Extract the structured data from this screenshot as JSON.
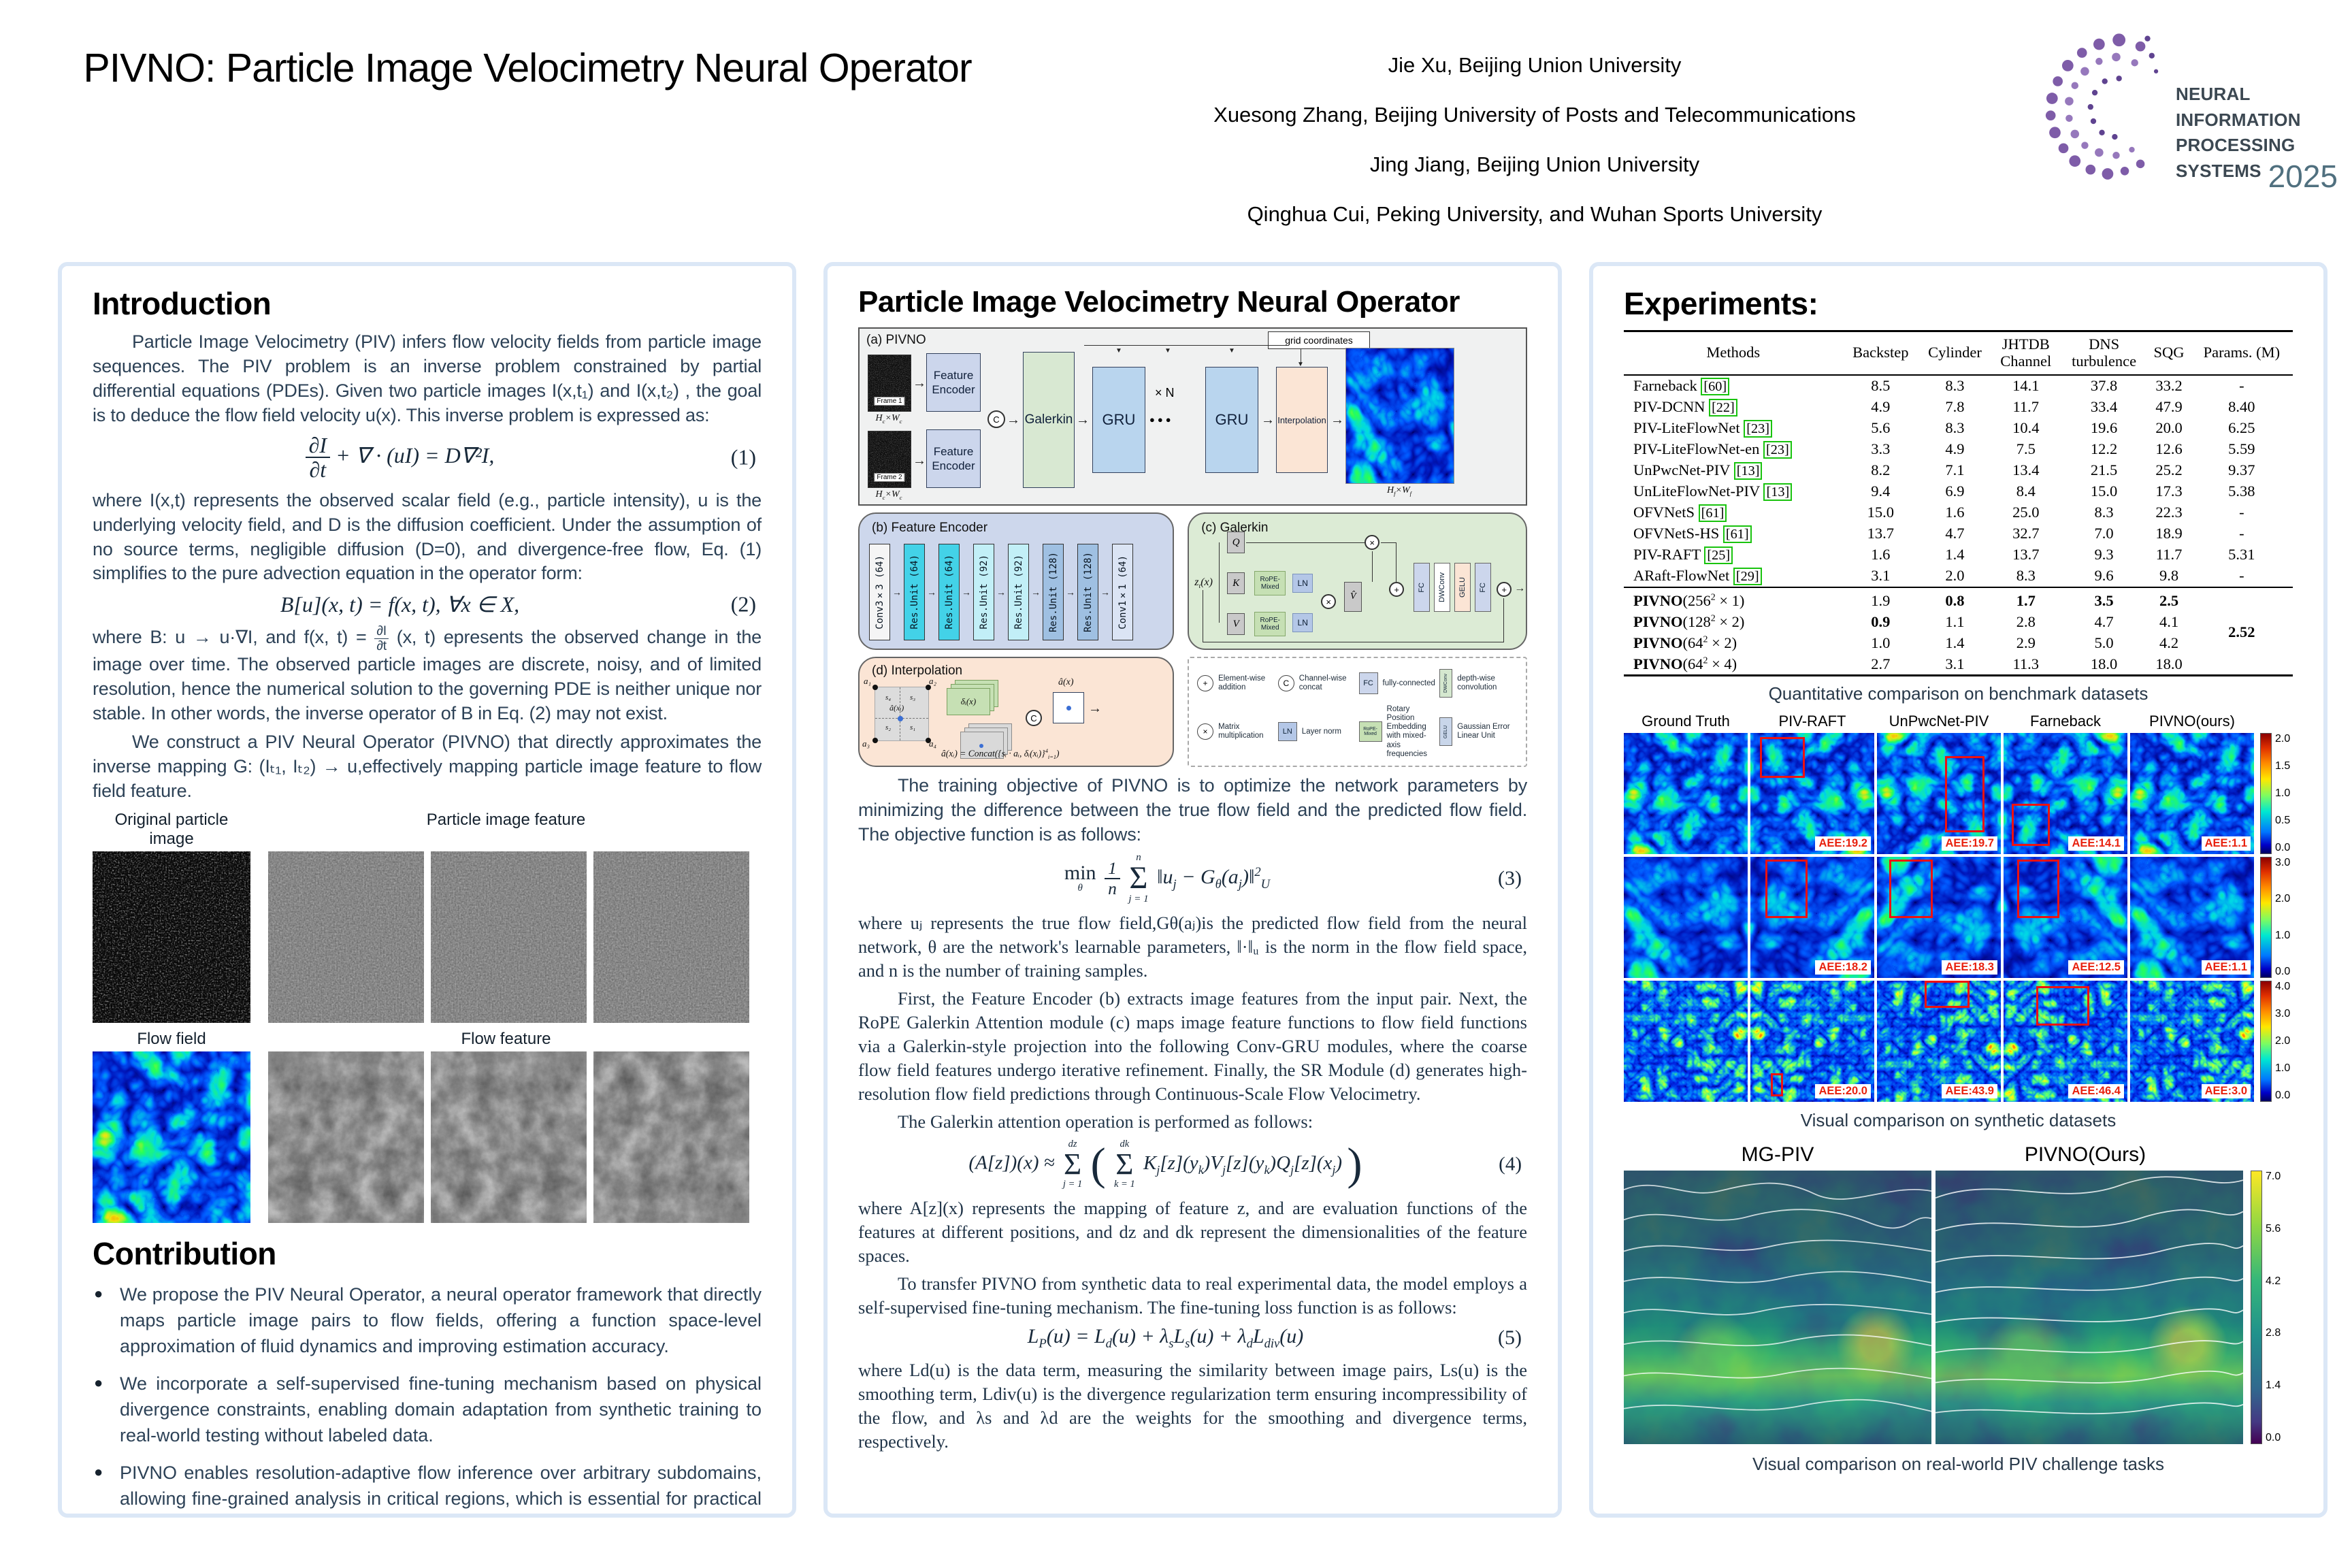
{
  "header": {
    "title": "PIVNO: Particle Image Velocimetry Neural Operator",
    "authors": [
      "Jie Xu, Beijing Union University",
      "Xuesong Zhang, Beijing University of Posts and Telecommunications",
      "Jing Jiang, Beijing Union University",
      "Qinghua Cui, Peking University, and Wuhan Sports University"
    ],
    "logo": {
      "line1": "NEURAL INFORMATION",
      "line2": "PROCESSING SYSTEMS",
      "year": "2025"
    }
  },
  "intro": {
    "heading": "Introduction",
    "p1": "Particle Image Velocimetry (PIV) infers flow velocity fields from particle image sequences. The PIV problem is an inverse problem constrained by partial differential equations (PDEs). Given two particle images I(x,t₁) and I(x,t₂) , the goal is to deduce the flow field velocity u(x). This inverse problem is expressed as:",
    "eq1": {
      "top": "∂I",
      "bot": "∂t",
      "rest": "+ ∇ · (uI) = D∇²I,",
      "num": "(1)"
    },
    "p2": "where I(x,t) represents the observed scalar field (e.g., particle intensity), u is the underlying velocity field, and D is the diffusion coefficient. Under the assumption of no source terms, negligible diffusion (D=0), and divergence-free flow, Eq. (1) simplifies to the pure advection equation in the operator form:",
    "eq2": {
      "body": "B[u](x, t) = f(x, t),    ∀x ∈ X,",
      "num": "(2)"
    },
    "p3a": "where B: u → u·∇I,  and f(x, t) =",
    "p3frac": {
      "top": "∂I",
      "bot": "∂t"
    },
    "p3b": "(x, t) epresents the observed change in the image over time. The observed particle images are discrete, noisy, and of limited resolution, hence the numerical solution to the governing PDE is neither unique nor stable. In other words, the inverse operator of B in Eq. (2) may not exist.",
    "p4": "We construct a PIV Neural Operator (PIVNO) that directly approximates the inverse mapping G: (Iₜ₁, Iₜ₂) → u,effectively mapping particle image feature to flow field feature.",
    "img_labels": {
      "orig": "Original particle image",
      "pif": "Particle image feature",
      "ff": "Flow field",
      "fft": "Flow feature"
    }
  },
  "contribution": {
    "heading": "Contribution",
    "bullets": [
      "We propose the PIV Neural Operator, a neural operator framework that directly maps particle image pairs to flow fields, offering a function space-level approximation of fluid dynamics and improving estimation accuracy.",
      "We incorporate a self-supervised fine-tuning mechanism based on physical divergence constraints, enabling domain adaptation from synthetic training to real-world testing without labeled data.",
      "PIVNO enables resolution-adaptive flow inference over arbitrary subdomains, allowing fine-grained analysis in critical regions, which is essential for practical experimental fluid mechanics."
    ]
  },
  "middle": {
    "heading": "Particle Image Velocimetry Neural Operator",
    "diagram_a": {
      "label": "(a) PIVNO",
      "frame1": "Frame 1",
      "frame2": "Frame 2",
      "dim_c": [
        {
          "t": "H"
        },
        {
          "sub": "c"
        },
        {
          "t": "×W"
        },
        {
          "sub": "c"
        }
      ],
      "dim_f": [
        {
          "t": "H"
        },
        {
          "sub": "f"
        },
        {
          "t": "×W"
        },
        {
          "sub": "f"
        }
      ],
      "fe": "Feature Encoder",
      "concat": "C",
      "galerkin": "Galerkin",
      "gru1": "GRU",
      "gru2": "GRU",
      "xn": "× N",
      "dots": "●●●",
      "interp": "Interpolation",
      "grid": "grid coordinates"
    },
    "encoder": {
      "label": "(b) Feature Encoder",
      "blocks": [
        "Conv3×3 (64)",
        "Res.Unit (64)",
        "Res.Unit (64)",
        "Res.Unit (92)",
        "Res.Unit (92)",
        "Res.Unit (128)",
        "Res.Unit (128)",
        "Conv1×1 (64)"
      ]
    },
    "galerkin": {
      "label": "(c) Galerkin",
      "input": [
        {
          "t": "z"
        },
        {
          "sub": "t"
        },
        {
          "t": "(x)"
        }
      ],
      "q": "Q",
      "k": "K",
      "v": "V",
      "rope1": "RoPE-Mixed",
      "rope2": "RoPE-Mixed",
      "ln1": "LN",
      "ln2": "LN",
      "vhat": "V̂",
      "fc1": "FC",
      "dwconv": "DWConv",
      "gelu": "GELU",
      "fc2": "FC"
    },
    "interp": {
      "label": "(d) Interpolation",
      "a1": "a₁",
      "a2": "a₂",
      "a3": "a₃",
      "a4": "a₄",
      "s1": "s₁",
      "s2": "s₂",
      "s3": "s₃",
      "s4": "s₄",
      "center": "â(xᵢ)",
      "delta": "δᵢ(x)",
      "ahat": "â(x)",
      "concat": "C",
      "formula": [
        {
          "t": "â(xᵢ) = Concat({sᵢ · aᵢ, δᵢ(xᵢ)}"
        },
        {
          "sup": "4"
        },
        {
          "sub": "i=1"
        },
        {
          "t": ")"
        }
      ]
    },
    "legend": [
      {
        "icon": "plus-circle",
        "label": "Element-wise addition"
      },
      {
        "icon": "c-circle",
        "label": "Channel-wise concat"
      },
      {
        "icon": "fc-box",
        "label": "fully-connected"
      },
      {
        "icon": "dwconv-box",
        "label": "depth-wise convolution"
      },
      {
        "icon": "x-circle",
        "label": "Matrix multiplication"
      },
      {
        "icon": "ln-box",
        "label": "Layer norm"
      },
      {
        "icon": "rope-box",
        "label": "Rotary Position Embedding with mixed-axis frequencies"
      },
      {
        "icon": "gelu-box",
        "label": "Gaussian Error Linear Unit"
      }
    ],
    "legend_icons": {
      "plus": "+",
      "c": "C",
      "x": "×",
      "fc": "FC",
      "ln": "LN",
      "dwconv": "DWConv",
      "rope": "RoPE-Mixed",
      "gelu": "GELU"
    },
    "p1": "The training objective of PIVNO is to optimize the network parameters by minimizing the difference between the true flow field and the predicted flow field. The objective function is as follows:",
    "eq3": {
      "min": "min",
      "minsub": "θ",
      "ftop": "1",
      "fbot": "n",
      "stop": "n",
      "sbot": "j = 1",
      "body": [
        {
          "t": "‖u"
        },
        {
          "sub": "j"
        },
        {
          "t": " − G"
        },
        {
          "sub": "θ"
        },
        {
          "t": "(a"
        },
        {
          "sub": "j"
        },
        {
          "t": ")‖"
        },
        {
          "sup": "2"
        },
        {
          "sub": "U"
        }
      ],
      "num": "(3)"
    },
    "p2": "where uⱼ represents the true flow field,Gθ(aⱼ)is the predicted flow field from the neural network, θ are the network's learnable parameters, ‖·‖ᵤ is the norm in the flow field space, and n is the number of training samples.",
    "p3": "First, the Feature Encoder (b) extracts image features from the input pair. Next, the RoPE Galerkin Attention module (c) maps image feature functions to flow field functions via a Galerkin-style projection into the following Conv-GRU modules, where the coarse flow field features undergo iterative refinement. Finally, the SR Module (d) generates high-resolution flow field predictions through Continuous-Scale Flow Velocimetry.",
    "p4": "The Galerkin attention operation is performed as follows:",
    "eq4": {
      "lhs": "(A[z])(x) ≈",
      "s1top": "dz",
      "s1bot": "j = 1",
      "s2top": "dk",
      "s2bot": "k = 1",
      "body": [
        {
          "t": "K"
        },
        {
          "sub": "j"
        },
        {
          "t": "[z](y"
        },
        {
          "sub": "k"
        },
        {
          "t": ")V"
        },
        {
          "sub": "j"
        },
        {
          "t": "[z](y"
        },
        {
          "sub": "k"
        },
        {
          "t": ")Q"
        },
        {
          "sub": "j"
        },
        {
          "t": "[z](x"
        },
        {
          "sub": "j"
        },
        {
          "t": ")"
        }
      ],
      "num": "(4)"
    },
    "p5": "where A[z](x) represents the mapping of feature z, and are evaluation functions of the features at different positions, and dz and dk represent the dimensionalities of the feature spaces.",
    "p6": "To transfer PIVNO from synthetic data to real experimental data, the model employs a self-supervised fine-tuning mechanism. The fine-tuning loss function is as follows:",
    "eq5": {
      "body": [
        {
          "t": "L"
        },
        {
          "sub": "P"
        },
        {
          "t": "(u) = L"
        },
        {
          "sub": "d"
        },
        {
          "t": "(u) + λ"
        },
        {
          "sub": "s"
        },
        {
          "t": "L"
        },
        {
          "sub": "s"
        },
        {
          "t": "(u) + λ"
        },
        {
          "sub": "d"
        },
        {
          "t": "L"
        },
        {
          "sub": "div"
        },
        {
          "t": "(u)"
        }
      ],
      "num": "(5)"
    },
    "p7": "where Ld(u) is the data term, measuring the similarity between image pairs, Ls(u) is the smoothing term, Ldiv(u) is the divergence regularization term ensuring incompressibility of the flow, and λs and λd are the weights for the smoothing and divergence terms, respectively."
  },
  "experiments": {
    "heading": "Experiments:",
    "table": {
      "headers": [
        "Methods",
        "Backstep",
        "Cylinder",
        "JHTDB\nChannel",
        "DNS\nturbulence",
        "SQG",
        "Params. (M)"
      ],
      "rows": [
        {
          "m": "Farneback",
          "ref": "[60]",
          "v0": "8.5",
          "v1": "8.3",
          "v2": "14.1",
          "v3": "37.8",
          "v4": "33.2",
          "p": "-"
        },
        {
          "m": "PIV-DCNN",
          "ref": "[22]",
          "v0": "4.9",
          "v1": "7.8",
          "v2": "11.7",
          "v3": "33.4",
          "v4": "47.9",
          "p": "8.40"
        },
        {
          "m": "PIV-LiteFlowNet",
          "ref": "[23]",
          "v0": "5.6",
          "v1": "8.3",
          "v2": "10.4",
          "v3": "19.6",
          "v4": "20.0",
          "p": "6.25"
        },
        {
          "m": "PIV-LiteFlowNet-en",
          "ref": "[23]",
          "v0": "3.3",
          "v1": "4.9",
          "v2": "7.5",
          "v3": "12.2",
          "v4": "12.6",
          "p": "5.59"
        },
        {
          "m": "UnPwcNet-PIV",
          "ref": "[13]",
          "v0": "8.2",
          "v1": "7.1",
          "v2": "13.4",
          "v3": "21.5",
          "v4": "25.2",
          "p": "9.37"
        },
        {
          "m": "UnLiteFlowNet-PIV",
          "ref": "[13]",
          "v0": "9.4",
          "v1": "6.9",
          "v2": "8.4",
          "v3": "15.0",
          "v4": "17.3",
          "p": "5.38"
        },
        {
          "m": "OFVNetS",
          "ref": "[61]",
          "v0": "15.0",
          "v1": "1.6",
          "v2": "25.0",
          "v3": "8.3",
          "v4": "22.3",
          "p": "-"
        },
        {
          "m": "OFVNetS-HS",
          "ref": "[61]",
          "v0": "13.7",
          "v1": "4.7",
          "v2": "32.7",
          "v3": "7.0",
          "v4": "18.9",
          "p": "-"
        },
        {
          "m": "PIV-RAFT",
          "ref": "[25]",
          "v0": "1.6",
          "v1": "1.4",
          "v2": "13.7",
          "v3": "9.3",
          "v4": "11.7",
          "p": "5.31"
        },
        {
          "m": "ARaft-FlowNet",
          "ref": "[29]",
          "v0": "3.1",
          "v1": "2.0",
          "v2": "8.3",
          "v3": "9.6",
          "v4": "9.8",
          "p": "-"
        }
      ],
      "pivno": {
        "prefix": "PIVNO",
        "rows": [
          {
            "suffix": [
              {
                "t": "(256"
              },
              {
                "sup": "2"
              },
              {
                "t": " × 1)"
              }
            ],
            "v0": "1.9",
            "v1": "0.8",
            "v2": "1.7",
            "v3": "3.5",
            "v4": "2.5"
          },
          {
            "suffix": [
              {
                "t": "(128"
              },
              {
                "sup": "2"
              },
              {
                "t": " × 2)"
              }
            ],
            "v0": "0.9",
            "v1": "1.1",
            "v2": "2.8",
            "v3": "4.7",
            "v4": "4.1"
          },
          {
            "suffix": [
              {
                "t": "(64"
              },
              {
                "sup": "2"
              },
              {
                "t": " × 2)"
              }
            ],
            "v0": "1.0",
            "v1": "1.4",
            "v2": "2.9",
            "v3": "5.0",
            "v4": "4.2"
          },
          {
            "suffix": [
              {
                "t": "(64"
              },
              {
                "sup": "2"
              },
              {
                "t": " × 4)"
              }
            ],
            "v0": "2.7",
            "v1": "3.1",
            "v2": "11.3",
            "v3": "18.0",
            "v4": "18.0"
          }
        ],
        "params": "2.52"
      },
      "caption": "Quantitative comparison on benchmark datasets"
    },
    "visual": {
      "headers": [
        "Ground Truth",
        "PIV-RAFT",
        "UnPwcNet-PIV",
        "Farneback",
        "PIVNO(ours)"
      ],
      "rows": [
        {
          "aee": [
            "",
            "AEE:19.2",
            "AEE:19.7",
            "AEE:14.1",
            "AEE:1.1"
          ],
          "ticks": [
            "2.0",
            "1.5",
            "1.0",
            "0.5",
            "0.0"
          ]
        },
        {
          "aee": [
            "",
            "AEE:18.2",
            "AEE:18.3",
            "AEE:12.5",
            "AEE:1.1"
          ],
          "ticks": [
            "3.0",
            "2.0",
            "1.0",
            "0.0"
          ]
        },
        {
          "aee": [
            "",
            "AEE:20.0",
            "AEE:43.9",
            "AEE:46.4",
            "AEE:3.0"
          ],
          "ticks": [
            "4.0",
            "3.0",
            "2.0",
            "1.0",
            "0.0"
          ]
        }
      ],
      "caption": "Visual comparison on synthetic datasets"
    },
    "real": {
      "headers": [
        "MG-PIV",
        "PIVNO(Ours)"
      ],
      "ticks": [
        "7.0",
        "5.6",
        "4.2",
        "2.8",
        "1.4",
        "0.0"
      ],
      "caption": "Visual comparison on real-world PIV challenge tasks"
    }
  }
}
